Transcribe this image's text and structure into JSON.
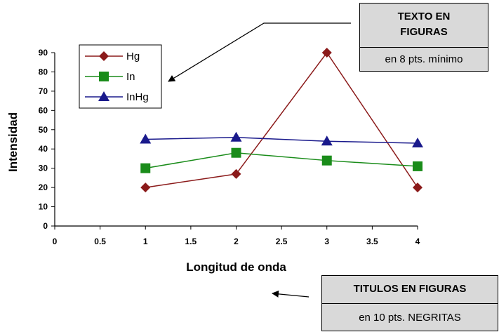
{
  "chart_data": {
    "type": "line",
    "title": "",
    "xlabel": "Longitud de onda",
    "ylabel": "Intensidad",
    "xlim": [
      0,
      4
    ],
    "ylim": [
      0,
      90
    ],
    "x_ticks": [
      "0",
      "0.5",
      "1",
      "1.5",
      "2",
      "2.5",
      "3",
      "3.5",
      "4"
    ],
    "y_ticks": [
      "0",
      "10",
      "20",
      "30",
      "40",
      "50",
      "60",
      "70",
      "80",
      "90"
    ],
    "x": [
      1,
      2,
      3,
      4
    ],
    "grid": false,
    "legend_position": "top-left",
    "series": [
      {
        "name": "Hg",
        "values": [
          20,
          27,
          90,
          20
        ],
        "color": "#8b1a1a",
        "marker": "diamond"
      },
      {
        "name": "In",
        "values": [
          30,
          38,
          34,
          31
        ],
        "color": "#1a8c1a",
        "marker": "square"
      },
      {
        "name": "InHg",
        "values": [
          45,
          46,
          44,
          43
        ],
        "color": "#1a1a8c",
        "marker": "triangle"
      }
    ]
  },
  "annotations": {
    "top": {
      "title_line1": "TEXTO EN",
      "title_line2": "FIGURAS",
      "subtitle": "en 8 pts. mínimo"
    },
    "bottom": {
      "title": "TITULOS EN FIGURAS",
      "subtitle": "en 10 pts. NEGRITAS"
    }
  }
}
